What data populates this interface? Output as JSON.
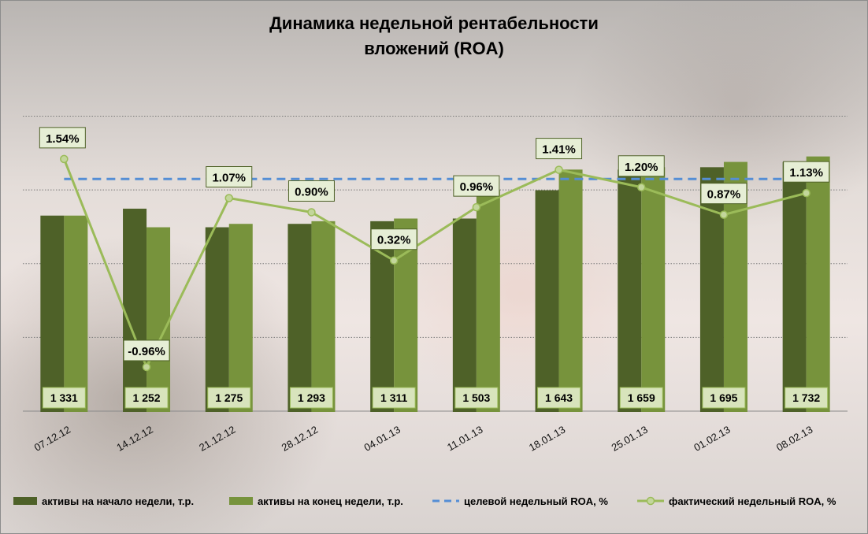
{
  "chart_data": {
    "type": "bar",
    "title": [
      "Динамика недельной рентабельности",
      "вложений (ROA)"
    ],
    "categories": [
      "07.12.12",
      "14.12.12",
      "21.12.12",
      "28.12.12",
      "04.01.13",
      "11.01.13",
      "18.01.13",
      "25.01.13",
      "01.02.13",
      "08.02.13"
    ],
    "series": [
      {
        "name": "активы на начало  недели, т.р.",
        "kind": "bar",
        "color": "#4e6128",
        "values": [
          1331,
          1378,
          1252,
          1275,
          1293,
          1311,
          1503,
          1643,
          1659,
          1695
        ]
      },
      {
        "name": "активы на конец недели, т.р.",
        "kind": "bar",
        "color": "#77933c",
        "values": [
          1331,
          1252,
          1275,
          1293,
          1311,
          1503,
          1643,
          1659,
          1695,
          1732
        ],
        "labels": [
          "1 331",
          "1 252",
          "1 275",
          "1 293",
          "1 311",
          "1 503",
          "1 643",
          "1 659",
          "1 695",
          "1 732"
        ]
      },
      {
        "name": "целевой недельный ROA, %",
        "kind": "dashed-line",
        "color": "#558ed5",
        "value": 1.3
      },
      {
        "name": "фактический недельный ROA, %",
        "kind": "line-markers",
        "color": "#9bbb59",
        "values": [
          1.54,
          -0.96,
          1.07,
          0.9,
          0.32,
          0.96,
          1.41,
          1.2,
          0.87,
          1.13
        ],
        "labels": [
          "1.54%",
          "-0.96%",
          "1.07%",
          "0.90%",
          "0.32%",
          "0.96%",
          "1.41%",
          "1.20%",
          "0.87%",
          "1.13%"
        ],
        "negative_label_color": "#ff0000"
      }
    ],
    "bar_axis": {
      "min": 0,
      "max": 2200,
      "gridlines": [
        0,
        500,
        1000,
        1500,
        2000
      ]
    },
    "roa_axis": {
      "min": -1.5,
      "max": 2.4
    },
    "grid": true,
    "legend_position": "bottom"
  }
}
